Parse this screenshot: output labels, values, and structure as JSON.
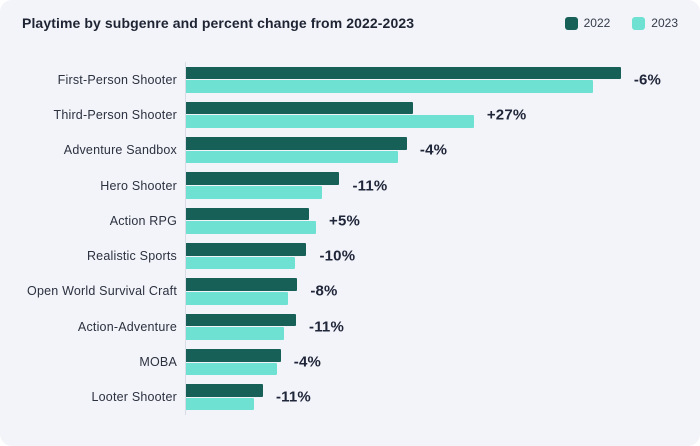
{
  "title": "Playtime by subgenre and percent change from 2022-2023",
  "theme": {
    "card_background": "#f3f4f9",
    "title_color": "#1e2433",
    "label_color": "#2c3140",
    "percent_label_color": "#20263a",
    "axis_line_color": "#d9dce4",
    "color_2022": "#176058",
    "color_2023": "#6fe1d2"
  },
  "legend": {
    "position": "top-right",
    "items": [
      {
        "label": "2022",
        "color": "#176058"
      },
      {
        "label": "2023",
        "color": "#6fe1d2"
      }
    ]
  },
  "chart_data": {
    "type": "bar",
    "orientation": "horizontal",
    "title": "Playtime by subgenre and percent change from 2022-2023",
    "xlabel": "",
    "ylabel": "",
    "grid": false,
    "legend_position": "top-right",
    "xlim": [
      0,
      112
    ],
    "categories": [
      "First-Person Shooter",
      "Third-Person Shooter",
      "Adventure Sandbox",
      "Hero Shooter",
      "Action RPG",
      "Realistic Sports",
      "Open World Survival Craft",
      "Action-Adventure",
      "MOBA",
      "Looter Shooter"
    ],
    "series": [
      {
        "name": "2022",
        "color": "#176058",
        "values": [
          100,
          52.2,
          50.8,
          35.3,
          28.4,
          27.7,
          25.6,
          25.3,
          21.8,
          17.7
        ]
      },
      {
        "name": "2023",
        "color": "#6fe1d2",
        "values": [
          93.7,
          66.2,
          48.7,
          31.3,
          29.9,
          25.0,
          23.5,
          22.5,
          20.9,
          15.7
        ]
      }
    ],
    "change_labels": [
      "-6%",
      "+27%",
      "-4%",
      "-11%",
      "+5%",
      "-10%",
      "-8%",
      "-11%",
      "-4%",
      "-11%"
    ]
  }
}
